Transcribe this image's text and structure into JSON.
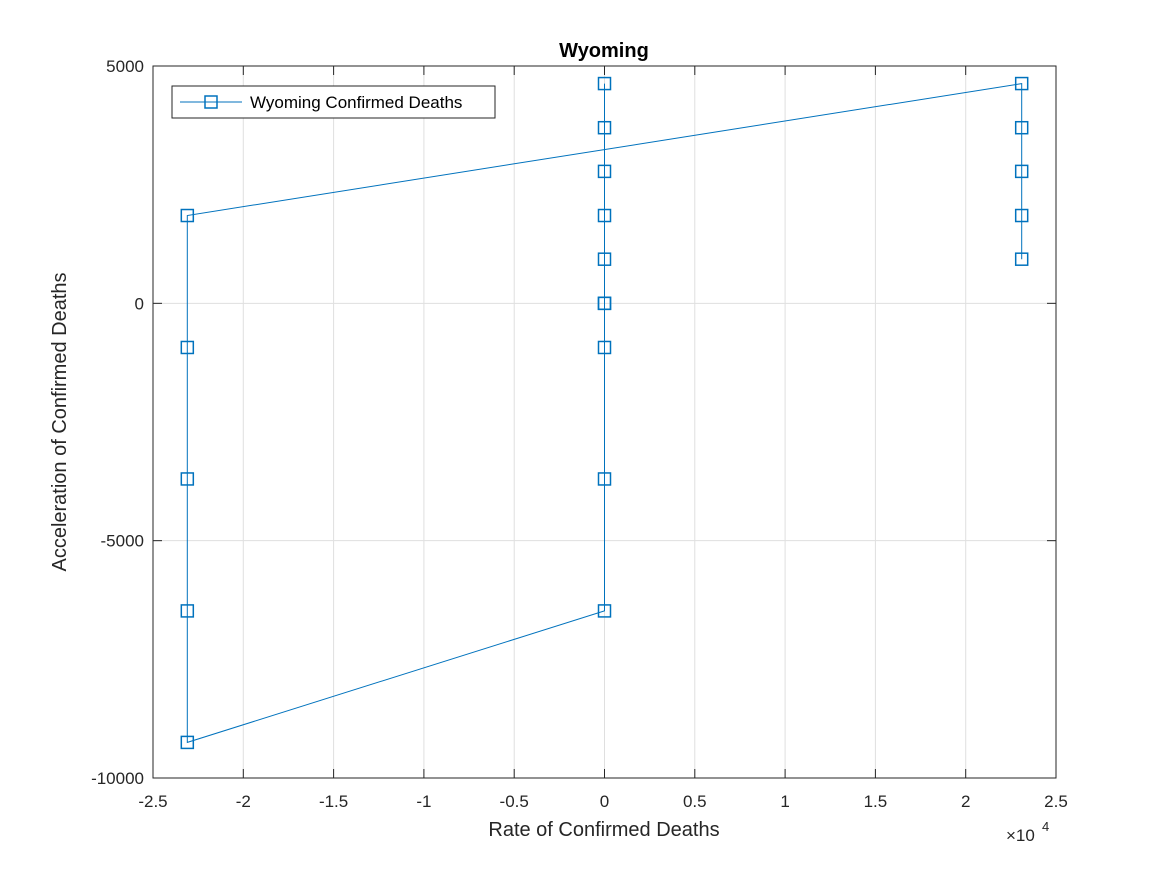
{
  "chart_data": {
    "type": "line",
    "title": "Wyoming",
    "xlabel": "Rate of Confirmed Deaths",
    "ylabel": "Acceleration of Confirmed Deaths",
    "x_exponent_base": "×10",
    "x_exponent_power": "4",
    "xlim": [
      -25000,
      25000
    ],
    "ylim": [
      -10000,
      5000
    ],
    "x_ticks": [
      -25000,
      -20000,
      -15000,
      -10000,
      -5000,
      0,
      5000,
      10000,
      15000,
      20000,
      25000
    ],
    "x_tick_labels": [
      "-2.5",
      "-2",
      "-1.5",
      "-1",
      "-0.5",
      "0",
      "0.5",
      "1",
      "1.5",
      "2",
      "2.5"
    ],
    "y_ticks": [
      -10000,
      -5000,
      0,
      5000
    ],
    "y_tick_labels": [
      "-10000",
      "-5000",
      "0",
      "5000"
    ],
    "grid": true,
    "legend_position": "top-left",
    "color": "#0072BD",
    "marker": "square",
    "series": [
      {
        "name": "Wyoming Confirmed Deaths",
        "points": [
          [
            23100,
            930
          ],
          [
            23100,
            1850
          ],
          [
            23100,
            2780
          ],
          [
            23100,
            3700
          ],
          [
            23100,
            4630
          ],
          [
            -23100,
            1850
          ],
          [
            -23100,
            -930
          ],
          [
            -23100,
            -3700
          ],
          [
            -23100,
            -6480
          ],
          [
            -23100,
            -9250
          ],
          [
            0,
            -6480
          ],
          [
            0,
            -3700
          ],
          [
            0,
            -930
          ],
          [
            0,
            0
          ],
          [
            0,
            0
          ],
          [
            0,
            930
          ],
          [
            0,
            1850
          ],
          [
            0,
            2780
          ],
          [
            0,
            3700
          ],
          [
            0,
            4630
          ]
        ]
      }
    ]
  }
}
